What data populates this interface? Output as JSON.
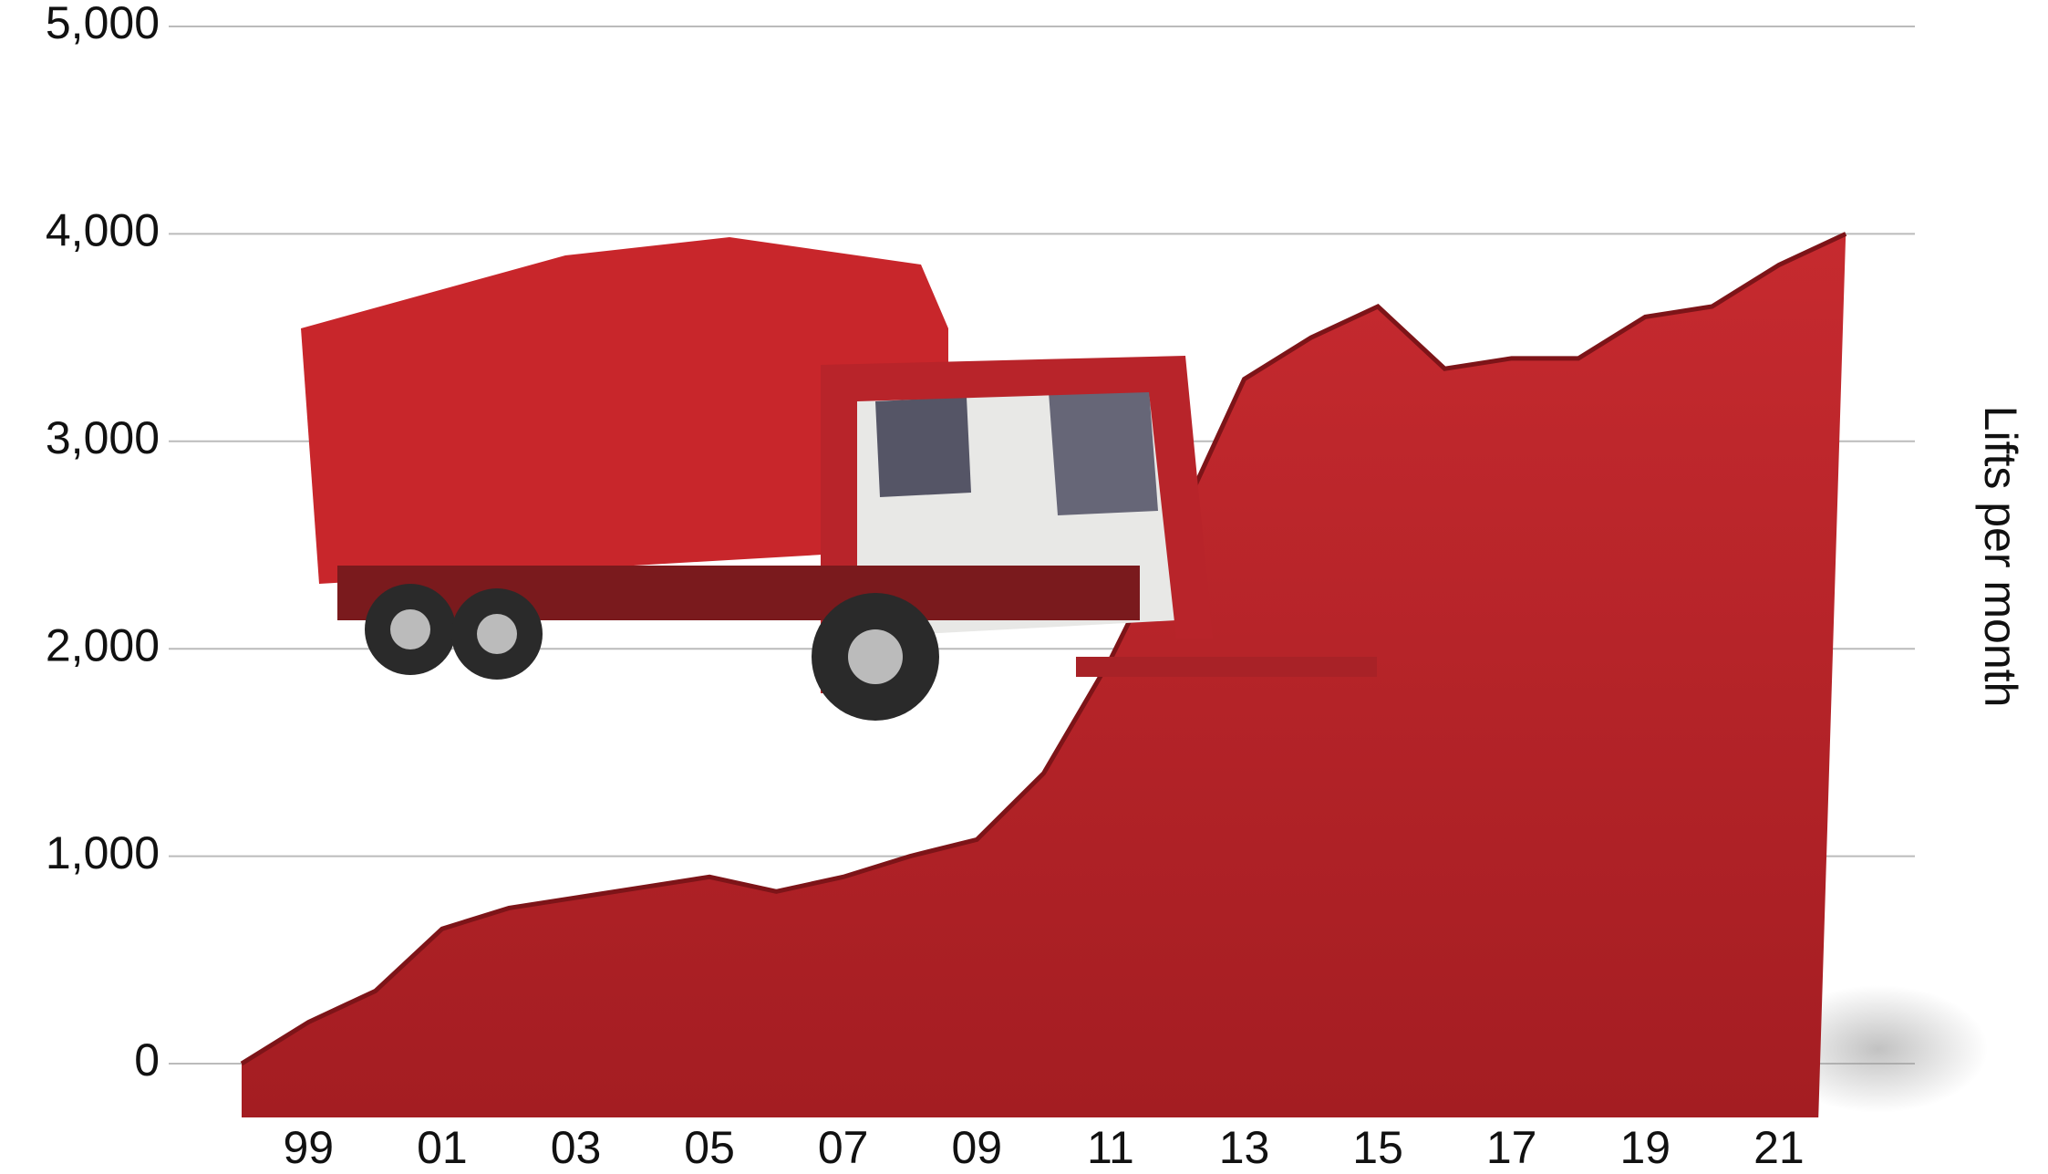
{
  "chart_data": {
    "type": "area",
    "categories": [
      null,
      "99",
      null,
      "01",
      null,
      "03",
      null,
      "05",
      null,
      "07",
      null,
      "09",
      null,
      "11",
      null,
      "13",
      null,
      "15",
      null,
      "17",
      null,
      "19",
      null,
      "21",
      null
    ],
    "series": [
      {
        "color": "#b3242a",
        "values": [
          0,
          200,
          350,
          650,
          750,
          800,
          850,
          900,
          830,
          900,
          1000,
          1080,
          1400,
          1950,
          2600,
          3300,
          3500,
          3650,
          3350,
          3400,
          3400,
          3600,
          3650,
          3850,
          4000
        ]
      }
    ],
    "ylim": [
      0,
      5000
    ],
    "yticks": [
      0,
      {
        "value": 1000,
        "label": "1,000"
      },
      {
        "value": 2000,
        "label": "2,000"
      },
      {
        "value": 3000,
        "label": "3,000"
      },
      {
        "value": 4000,
        "label": "4,000"
      },
      {
        "value": 5000,
        "label": "5,000"
      }
    ],
    "y_axis_label": "Lifts per month",
    "grid": true
  }
}
